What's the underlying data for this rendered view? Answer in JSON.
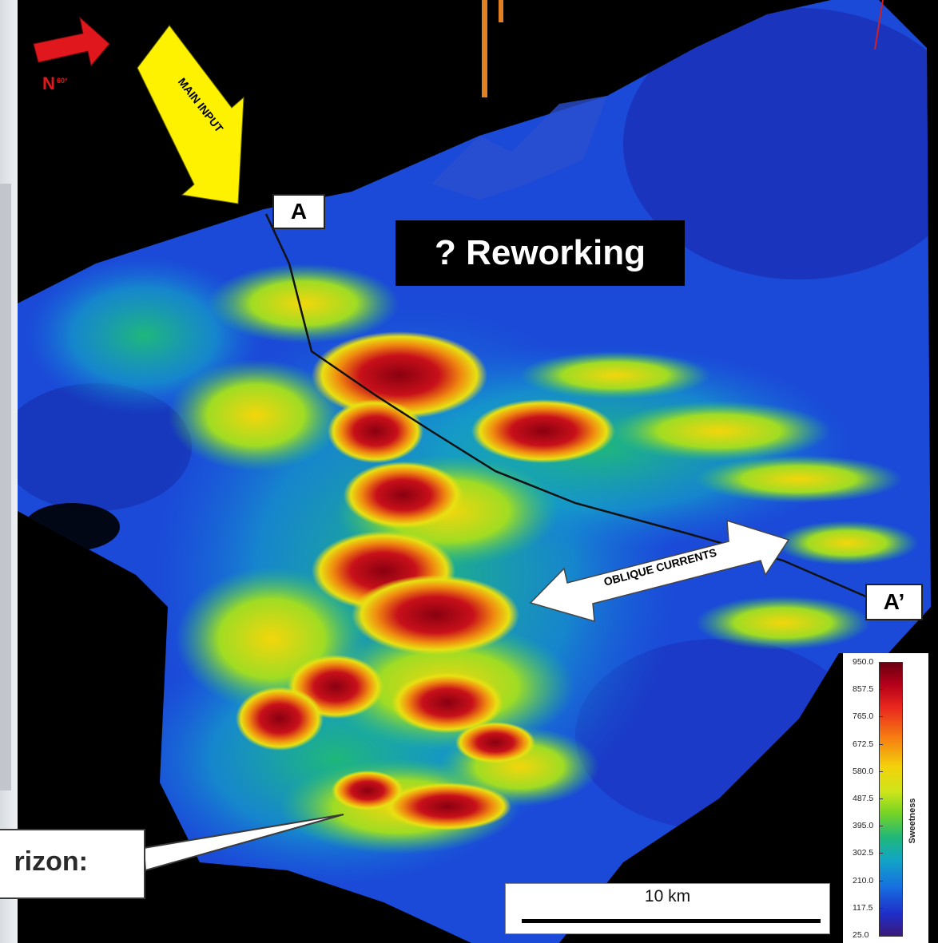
{
  "map": {
    "section_start_label": "A",
    "section_end_label": "A’",
    "reworking_label": "? Reworking",
    "main_input_label": "MAIN INPUT",
    "oblique_currents_label": "OBLIQUE CURRENTS",
    "callout_text": "rizon:",
    "scale_label": "10 km",
    "north_label": "N",
    "north_degrees": "60°"
  },
  "legend": {
    "title": "Sweetness",
    "ticks": [
      "950.0",
      "857.5",
      "765.0",
      "672.5",
      "580.0",
      "487.5",
      "395.0",
      "302.5",
      "210.0",
      "117.5",
      "25.0"
    ],
    "colors": [
      "#6a0010",
      "#b4001a",
      "#e8251e",
      "#f67a12",
      "#f3d10b",
      "#cfe51a",
      "#77d424",
      "#1fb77a",
      "#12a6c4",
      "#1670e0",
      "#1f2dc8",
      "#3a1a7a"
    ]
  }
}
